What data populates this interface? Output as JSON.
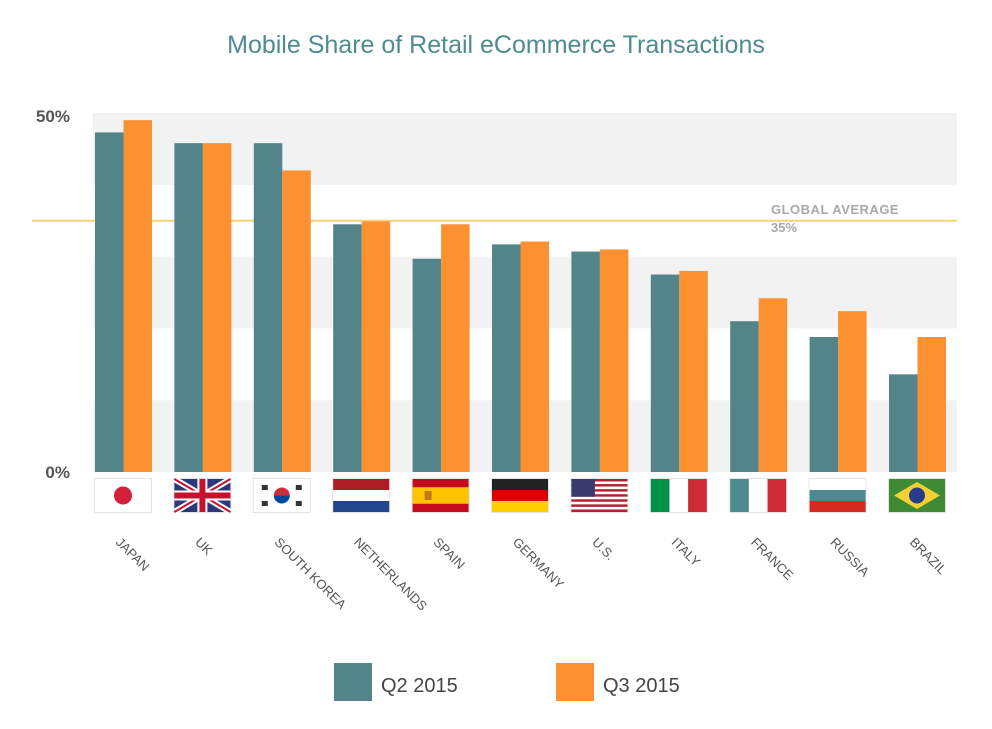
{
  "chart_data": {
    "type": "bar",
    "title": "Mobile Share of Retail eCommerce Transactions",
    "xlabel": "",
    "ylabel": "",
    "ylim": [
      0,
      50
    ],
    "y_tick_labels": [
      "0%",
      "50%"
    ],
    "grid": "alternating horizontal bands every 10%",
    "categories": [
      "JAPAN",
      "UK",
      "SOUTH KOREA",
      "NETHERLANDS",
      "SPAIN",
      "GERMANY",
      "U.S.",
      "ITALY",
      "FRANCE",
      "RUSSIA",
      "BRAZIL"
    ],
    "flags": [
      "japan",
      "uk",
      "south-korea",
      "netherlands",
      "spain",
      "germany",
      "us",
      "italy",
      "france",
      "russia",
      "brazil"
    ],
    "series": [
      {
        "name": "Q2 2015",
        "color": "#52848a",
        "values": [
          47.3,
          45.8,
          45.8,
          34.5,
          29.7,
          31.7,
          30.7,
          27.5,
          21.0,
          18.8,
          13.6
        ]
      },
      {
        "name": "Q3 2015",
        "color": "#fb9130",
        "values": [
          49.0,
          45.8,
          42.0,
          34.9,
          34.5,
          32.1,
          31.0,
          28.0,
          24.2,
          22.4,
          18.8
        ]
      }
    ],
    "reference_line": {
      "label": "GLOBAL AVERAGE",
      "value_label": "35%",
      "value": 35,
      "color": "#f6d27a"
    },
    "legend_placement": "bottom-center",
    "colors": {
      "title": "#4f8b91",
      "band": "#f2f2f2",
      "tick": "#555555",
      "category": "#555555",
      "ref_text": "#a8a8a8"
    }
  }
}
